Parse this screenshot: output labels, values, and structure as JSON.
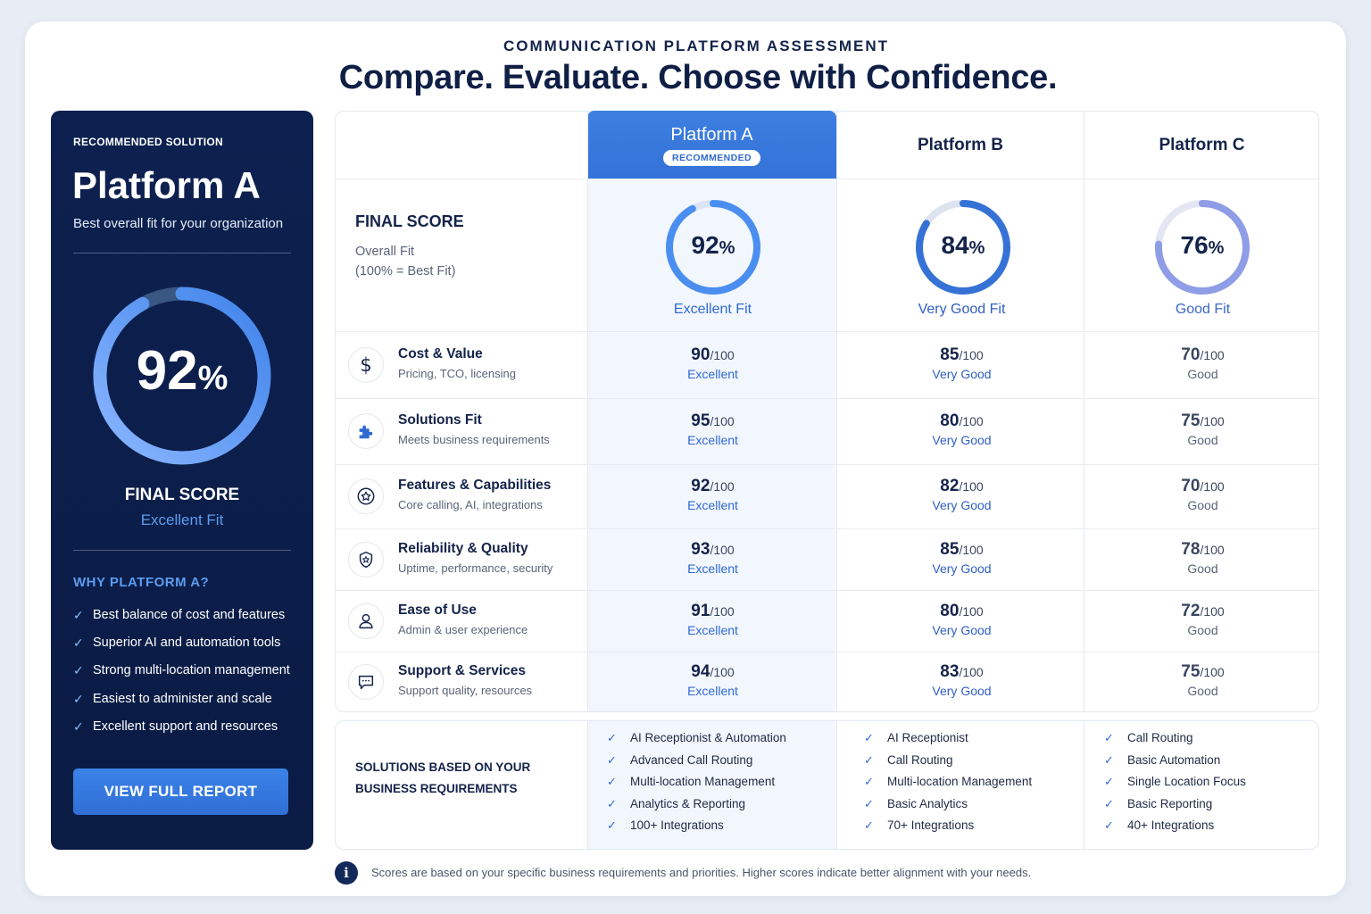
{
  "header": {
    "eyebrow": "COMMUNICATION PLATFORM ASSESSMENT",
    "headline": "Compare. Evaluate. Choose with Confidence."
  },
  "sidebar": {
    "label": "RECOMMENDED SOLUTION",
    "platform": "Platform A",
    "subtitle": "Best overall fit for your organization",
    "score_value": "92",
    "score_unit": "%",
    "score_fraction": 0.92,
    "final_score_label": "FINAL SCORE",
    "fit_label": "Excellent Fit",
    "why_title": "WHY PLATFORM A?",
    "reasons": [
      "Best balance of cost and features",
      "Superior AI and automation tools",
      "Strong multi-location management",
      "Easiest to administer and scale",
      "Excellent support and resources"
    ],
    "button_label": "VIEW FULL REPORT"
  },
  "table": {
    "platforms": [
      {
        "name": "Platform A",
        "badge": "RECOMMENDED",
        "score": "92",
        "unit": "%",
        "fraction": 0.92,
        "fit": "Excellent Fit",
        "color": "#4a8ef0",
        "fit_color": "#2f6ad2"
      },
      {
        "name": "Platform B",
        "score": "84",
        "unit": "%",
        "fraction": 0.84,
        "fit": "Very Good Fit",
        "color": "#3672d6",
        "fit_color": "#2f5fc4"
      },
      {
        "name": "Platform C",
        "score": "76",
        "unit": "%",
        "fraction": 0.76,
        "fit": "Good Fit",
        "color": "#8f9de6",
        "fit_color": "#3a66c8"
      }
    ],
    "final_score_title": "FINAL SCORE",
    "final_score_sub1": "Overall Fit",
    "final_score_sub2": "(100% = Best Fit)",
    "criteria": [
      {
        "name": "Cost & Value",
        "desc": "Pricing, TCO, licensing",
        "icon": "dollar-icon",
        "scores": [
          {
            "v": "90",
            "l": "Excellent"
          },
          {
            "v": "85",
            "l": "Very Good"
          },
          {
            "v": "70",
            "l": "Good"
          }
        ]
      },
      {
        "name": "Solutions Fit",
        "desc": "Meets business requirements",
        "icon": "puzzle-icon",
        "scores": [
          {
            "v": "95",
            "l": "Excellent"
          },
          {
            "v": "80",
            "l": "Very Good"
          },
          {
            "v": "75",
            "l": "Good"
          }
        ]
      },
      {
        "name": "Features & Capabilities",
        "desc": "Core calling, AI, integrations",
        "icon": "star-icon",
        "scores": [
          {
            "v": "92",
            "l": "Excellent"
          },
          {
            "v": "82",
            "l": "Very Good"
          },
          {
            "v": "70",
            "l": "Good"
          }
        ]
      },
      {
        "name": "Reliability & Quality",
        "desc": "Uptime, performance, security",
        "icon": "shield-icon",
        "scores": [
          {
            "v": "93",
            "l": "Excellent"
          },
          {
            "v": "85",
            "l": "Very Good"
          },
          {
            "v": "78",
            "l": "Good"
          }
        ]
      },
      {
        "name": "Ease of Use",
        "desc": "Admin & user experience",
        "icon": "user-icon",
        "scores": [
          {
            "v": "91",
            "l": "Excellent"
          },
          {
            "v": "80",
            "l": "Very Good"
          },
          {
            "v": "72",
            "l": "Good"
          }
        ]
      },
      {
        "name": "Support & Services",
        "desc": "Support quality, resources",
        "icon": "chat-icon",
        "scores": [
          {
            "v": "94",
            "l": "Excellent"
          },
          {
            "v": "83",
            "l": "Very Good"
          },
          {
            "v": "75",
            "l": "Good"
          }
        ]
      }
    ],
    "score_denominator": "/100",
    "label_colors": {
      "Excellent": "#2f6ad2",
      "Very Good": "#2f5fc4",
      "Good": "#5a6478"
    }
  },
  "solutions": {
    "title_line1": "SOLUTIONS BASED ON YOUR",
    "title_line2": "BUSINESS REQUIREMENTS",
    "columns": [
      [
        "AI Receptionist & Automation",
        "Advanced Call Routing",
        "Multi-location Management",
        "Analytics & Reporting",
        "100+ Integrations"
      ],
      [
        "AI Receptionist",
        "Call Routing",
        "Multi-location Management",
        "Basic Analytics",
        "70+ Integrations"
      ],
      [
        "Call Routing",
        "Basic Automation",
        "Single Location Focus",
        "Basic Reporting",
        "40+ Integrations"
      ]
    ]
  },
  "footer": {
    "note": "Scores are based on your specific business requirements and priorities. Higher scores indicate better alignment with your needs."
  }
}
